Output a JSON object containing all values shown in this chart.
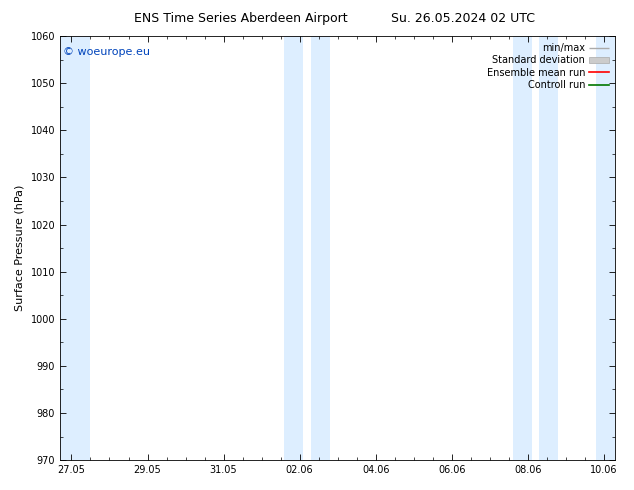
{
  "title_left": "ENS Time Series Aberdeen Airport",
  "title_right": "Su. 26.05.2024 02 UTC",
  "ylabel": "Surface Pressure (hPa)",
  "ylim": [
    970,
    1060
  ],
  "yticks": [
    970,
    980,
    990,
    1000,
    1010,
    1020,
    1030,
    1040,
    1050,
    1060
  ],
  "xtick_labels": [
    "27.05",
    "29.05",
    "31.05",
    "02.06",
    "04.06",
    "06.06",
    "08.06",
    "10.06"
  ],
  "xtick_positions": [
    0,
    2,
    4,
    6,
    8,
    10,
    12,
    14
  ],
  "xlim": [
    -0.3,
    14.3
  ],
  "shaded_bands": [
    {
      "x_start": -0.3,
      "x_end": 0.5
    },
    {
      "x_start": 5.6,
      "x_end": 6.1
    },
    {
      "x_start": 6.3,
      "x_end": 6.8
    },
    {
      "x_start": 11.6,
      "x_end": 12.1
    },
    {
      "x_start": 12.3,
      "x_end": 12.8
    },
    {
      "x_start": 13.8,
      "x_end": 14.3
    }
  ],
  "shaded_color": "#ddeeff",
  "background_color": "#ffffff",
  "watermark": "© woeurope.eu",
  "watermark_color": "#0044bb",
  "legend_labels": [
    "min/max",
    "Standard deviation",
    "Ensemble mean run",
    "Controll run"
  ],
  "legend_line_color": "#aaaaaa",
  "legend_std_color": "#cccccc",
  "legend_mean_color": "#ff0000",
  "legend_ctrl_color": "#007700",
  "title_fontsize": 9,
  "tick_fontsize": 7,
  "ylabel_fontsize": 8,
  "legend_fontsize": 7,
  "watermark_fontsize": 8
}
